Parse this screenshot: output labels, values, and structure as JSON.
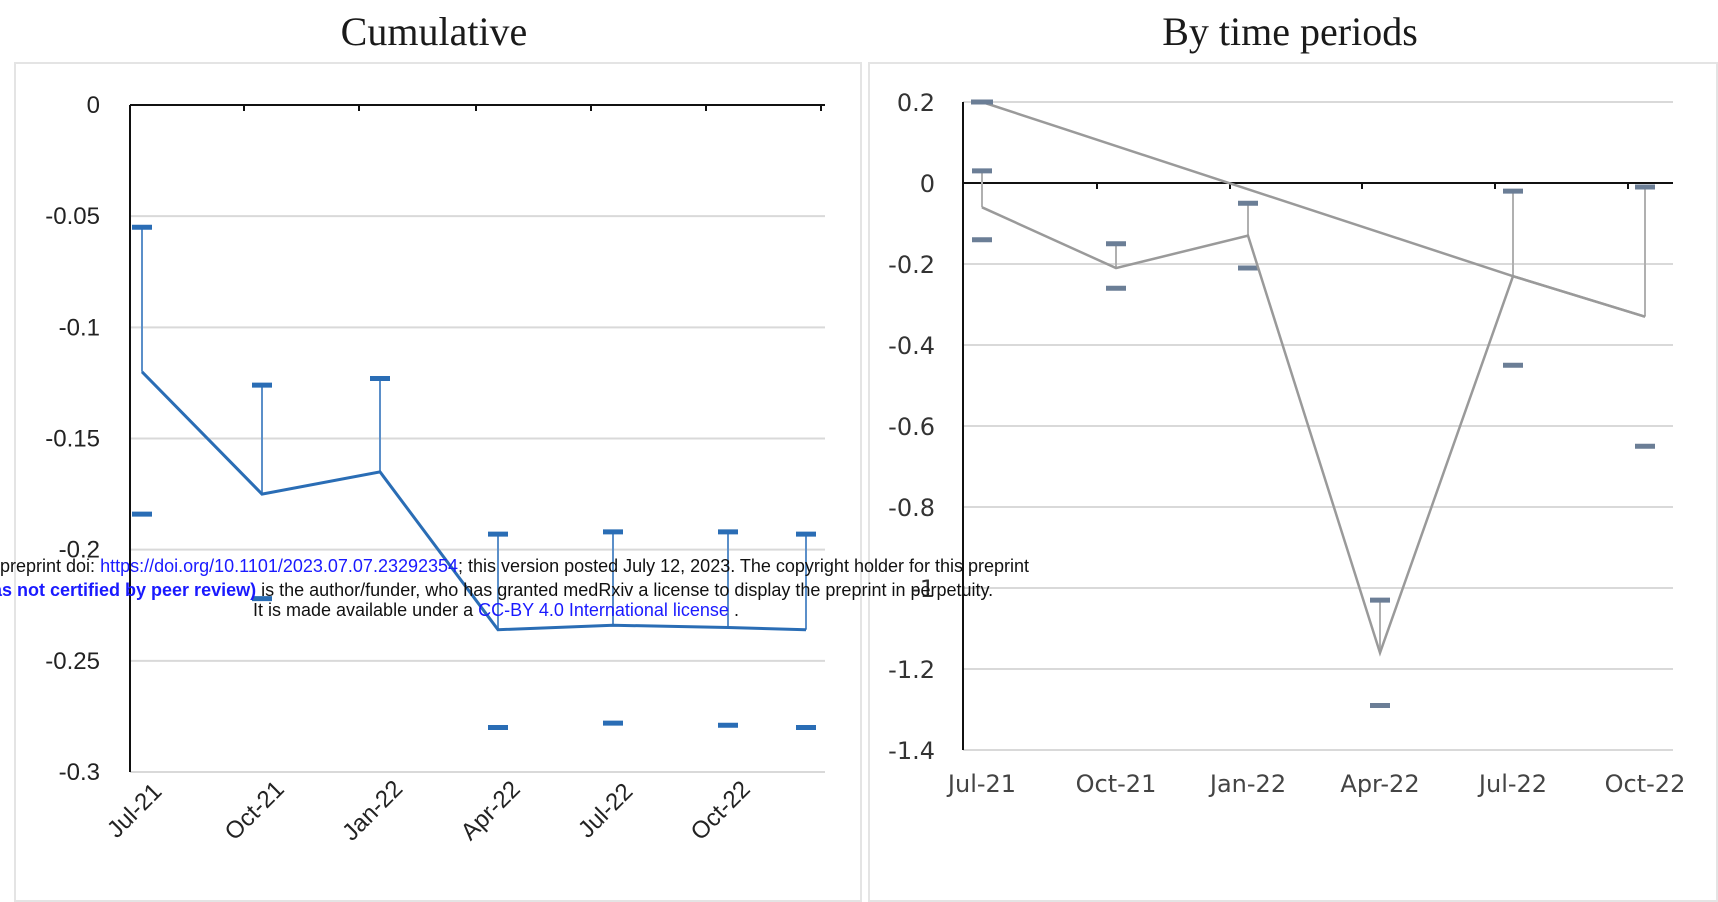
{
  "titles": {
    "left": "Cumulative",
    "right": "By time periods"
  },
  "chart_data": [
    {
      "type": "line",
      "title": "Cumulative",
      "x": [
        "Jul-21",
        "Oct-21",
        "Jan-22",
        "Apr-22",
        "Jul-22",
        "Oct-22",
        ""
      ],
      "xtick_labels": [
        "Jul-21",
        "Oct-21",
        "Jan-22",
        "Apr-22",
        "Jul-22",
        "Oct-22"
      ],
      "series": [
        {
          "values": [
            -0.12,
            -0.175,
            -0.165,
            -0.236,
            -0.234,
            -0.235,
            -0.236
          ],
          "upper": [
            -0.055,
            -0.126,
            -0.123,
            -0.193,
            -0.192,
            -0.192,
            -0.193
          ],
          "lower": [
            -0.184,
            -0.222,
            null,
            -0.28,
            -0.278,
            -0.279,
            -0.28
          ],
          "color": "#2a6db5"
        }
      ],
      "ylim": [
        -0.3,
        0
      ],
      "yticks": [
        0,
        -0.05,
        -0.1,
        -0.15,
        -0.2,
        -0.25,
        -0.3
      ],
      "ytick_labels": [
        "0",
        "-0.05",
        "-0.1",
        "-0.15",
        "-0.2",
        "-0.25",
        "-0.3"
      ],
      "grid": true
    },
    {
      "type": "line",
      "title": "By time periods",
      "x": [
        "Jul-21",
        "Oct-21",
        "Jan-22",
        "Apr-22",
        "Jul-22",
        "Oct-22"
      ],
      "series": [
        {
          "values": [
            -0.06,
            -0.21,
            -0.13,
            -1.16,
            -0.23,
            -0.33
          ],
          "upper": [
            0.03,
            -0.15,
            -0.05,
            -1.03,
            -0.02,
            -0.01
          ],
          "lower": [
            -0.14,
            -0.26,
            -0.21,
            -1.29,
            -0.45,
            -0.65
          ],
          "color": "#9a9a9a"
        },
        {
          "values": [
            0.2,
            null,
            null,
            null,
            -0.23,
            -0.33
          ],
          "color": "#9a9a9a"
        }
      ],
      "ylim": [
        -1.4,
        0.2
      ],
      "ytick_labels": [
        "0.2",
        "0",
        "-0.2",
        "-0.4",
        "-0.6",
        "-0.8",
        "-1",
        "-1.2",
        "-1.4"
      ],
      "grid": true
    }
  ],
  "notice": {
    "line1_prefix": "preprint doi: ",
    "line1_link": "https://doi.org/10.1101/2023.07.07.23292354",
    "line1_suffix": "; this version posted July 12, 2023. The copyright holder for this preprint",
    "line2_bold": "as not certified by peer review)",
    "line2_suffix": " is the author/funder, who has granted medRxiv a license to display the preprint in perpetuity.",
    "line3_prefix": "It is made available under a ",
    "line3_link": "CC-BY 4.0 International license",
    "line3_suffix": " ."
  }
}
